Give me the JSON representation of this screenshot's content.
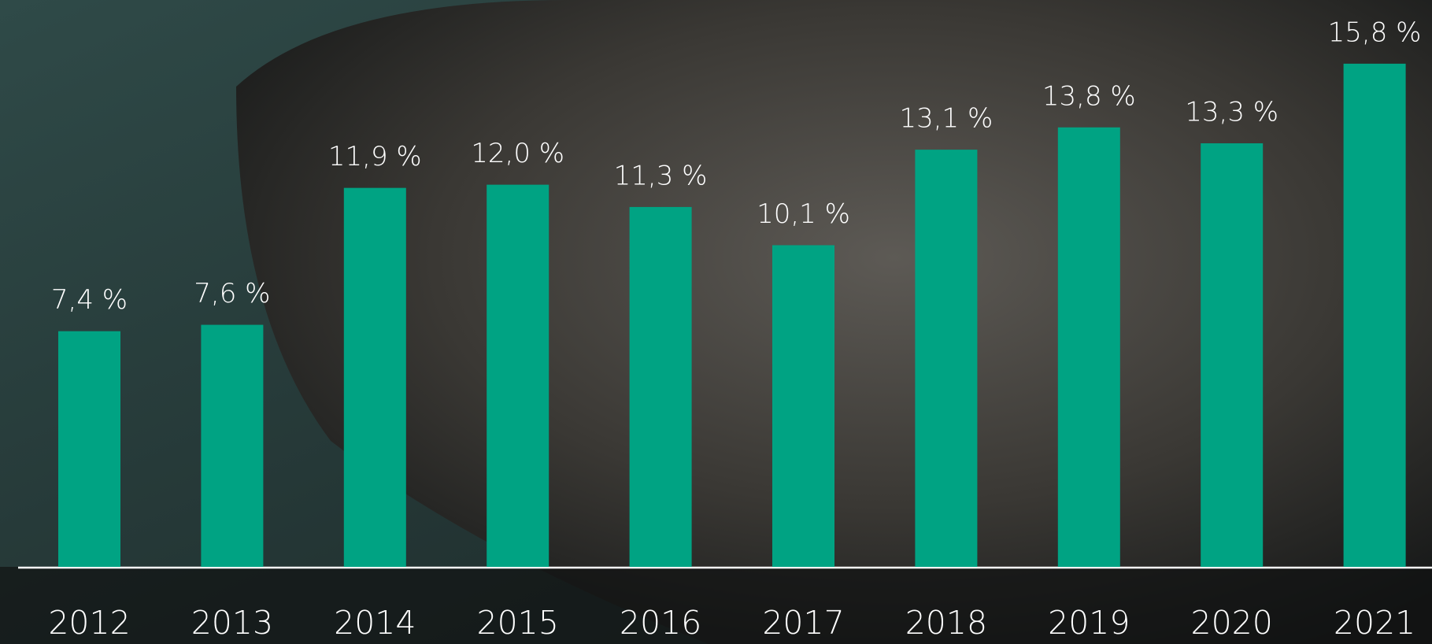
{
  "chart_data": {
    "type": "bar",
    "categories": [
      "2012",
      "2013",
      "2014",
      "2015",
      "2016",
      "2017",
      "2018",
      "2019",
      "2020",
      "2021"
    ],
    "values": [
      7.4,
      7.6,
      11.9,
      12.0,
      11.3,
      10.1,
      13.1,
      13.8,
      13.3,
      15.8
    ],
    "value_labels": [
      "7,4 %",
      "7,6 %",
      "11,9 %",
      "12,0 %",
      "11,3 %",
      "10,1 %",
      "13,1 %",
      "13,8 %",
      "13,3 %",
      "15,8 %"
    ],
    "color": "#00a383",
    "ylim": [
      0,
      17.8
    ]
  }
}
